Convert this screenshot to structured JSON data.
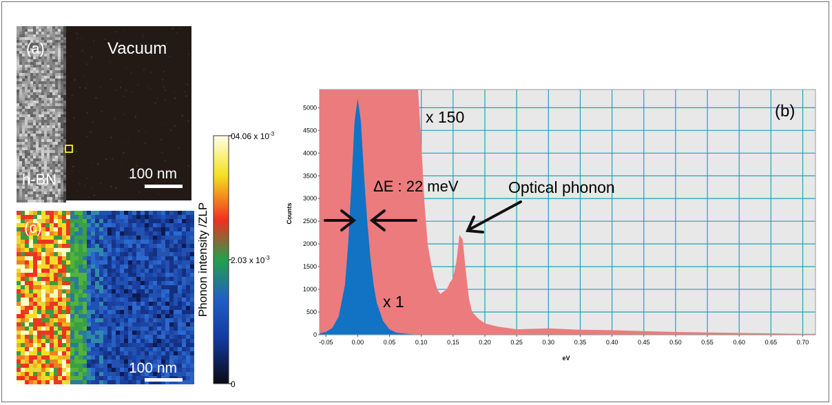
{
  "panel_a": {
    "label": "(a)",
    "region_left": "h-BN",
    "region_right": "Vacuum",
    "scalebar": "100 nm"
  },
  "panel_c": {
    "label": "(c)",
    "scalebar": "100 nm"
  },
  "colorbar": {
    "title": "Phonon intensity /ZLP",
    "ticks": [
      "04.06 x 10",
      "2.03 x 10",
      "0"
    ],
    "tick_exponent": "-3",
    "stops": [
      "#0a0a14",
      "#123a9e",
      "#1f5fc4",
      "#23a04a",
      "#f03020",
      "#f5e020",
      "#ffffe8"
    ]
  },
  "panel_b": {
    "label": "(b)",
    "annotations": {
      "scale_high": "x 150",
      "scale_low": "x 1",
      "resolution": "ΔE : 22 meV",
      "peak": "Optical phonon"
    },
    "colors": {
      "scaled": "#ec7b7d",
      "raw": "#1272c4",
      "grid": "#1ca3b7",
      "bg": "#e8e8e8"
    }
  },
  "chart_data": {
    "type": "area",
    "xlabel": "eV",
    "ylabel": "Counts",
    "xlim": [
      -0.06,
      0.72
    ],
    "ylim": [
      0,
      5400
    ],
    "grid": true,
    "x_ticks": [
      "-0.05",
      "0.00",
      "0.05",
      "0.10",
      "0.15",
      "0.20",
      "0.25",
      "0.30",
      "0.35",
      "0.40",
      "0.45",
      "0.50",
      "0.55",
      "0.60",
      "0.65",
      "0.70"
    ],
    "y_ticks": [
      "0",
      "500",
      "1000",
      "1500",
      "2000",
      "2500",
      "3000",
      "3500",
      "4000",
      "4500",
      "5000"
    ],
    "series": [
      {
        "name": "x 150",
        "x": [
          -0.06,
          -0.05,
          -0.04,
          -0.03,
          -0.02,
          -0.01,
          0.0,
          0.01,
          0.02,
          0.03,
          0.04,
          0.05,
          0.06,
          0.07,
          0.08,
          0.09,
          0.095,
          0.1,
          0.105,
          0.11,
          0.115,
          0.12,
          0.125,
          0.13,
          0.135,
          0.14,
          0.145,
          0.15,
          0.155,
          0.16,
          0.165,
          0.17,
          0.175,
          0.18,
          0.19,
          0.2,
          0.22,
          0.25,
          0.3,
          0.35,
          0.4,
          0.45,
          0.5,
          0.55,
          0.6,
          0.65,
          0.7,
          0.72
        ],
        "y": [
          5400,
          5400,
          5400,
          5400,
          5400,
          5400,
          5400,
          5400,
          5400,
          5400,
          5400,
          5400,
          5400,
          5400,
          5400,
          5400,
          5400,
          4200,
          2900,
          2000,
          1600,
          1250,
          1000,
          900,
          950,
          1000,
          1150,
          1250,
          1600,
          2200,
          2100,
          1400,
          800,
          500,
          350,
          250,
          180,
          120,
          140,
          110,
          100,
          80,
          60,
          50,
          40,
          30,
          20,
          20
        ]
      },
      {
        "name": "x 1",
        "x": [
          -0.06,
          -0.05,
          -0.04,
          -0.03,
          -0.02,
          -0.015,
          -0.01,
          -0.005,
          0.0,
          0.005,
          0.01,
          0.015,
          0.02,
          0.025,
          0.03,
          0.04,
          0.05,
          0.06,
          0.08,
          0.1
        ],
        "y": [
          30,
          60,
          150,
          400,
          1100,
          2000,
          3300,
          4700,
          5200,
          4700,
          3500,
          2500,
          1700,
          1100,
          700,
          300,
          120,
          50,
          15,
          0
        ]
      }
    ]
  }
}
